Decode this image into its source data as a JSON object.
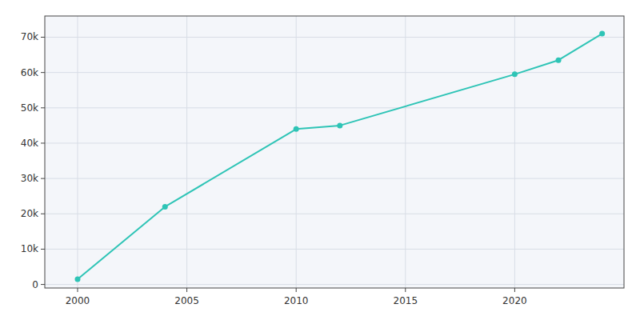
{
  "chart_data": {
    "type": "line",
    "x": [
      2000,
      2004,
      2010,
      2012,
      2020,
      2022,
      2024
    ],
    "values": [
      1500,
      22000,
      44000,
      45000,
      59500,
      63500,
      71000
    ],
    "color": "#2ec4b6",
    "marker": "circle",
    "xlim": [
      1998.5,
      2025
    ],
    "ylim": [
      -1000,
      76000
    ],
    "xticks": [
      2000,
      2005,
      2010,
      2015,
      2020
    ],
    "yticks": [
      0,
      {
        "value": 10000,
        "label": "10k"
      },
      {
        "value": 20000,
        "label": "20k"
      },
      {
        "value": 30000,
        "label": "30k"
      },
      {
        "value": 40000,
        "label": "40k"
      },
      {
        "value": 50000,
        "label": "50k"
      },
      {
        "value": 60000,
        "label": "60k"
      },
      {
        "value": 70000,
        "label": "70k"
      }
    ],
    "grid": true
  }
}
